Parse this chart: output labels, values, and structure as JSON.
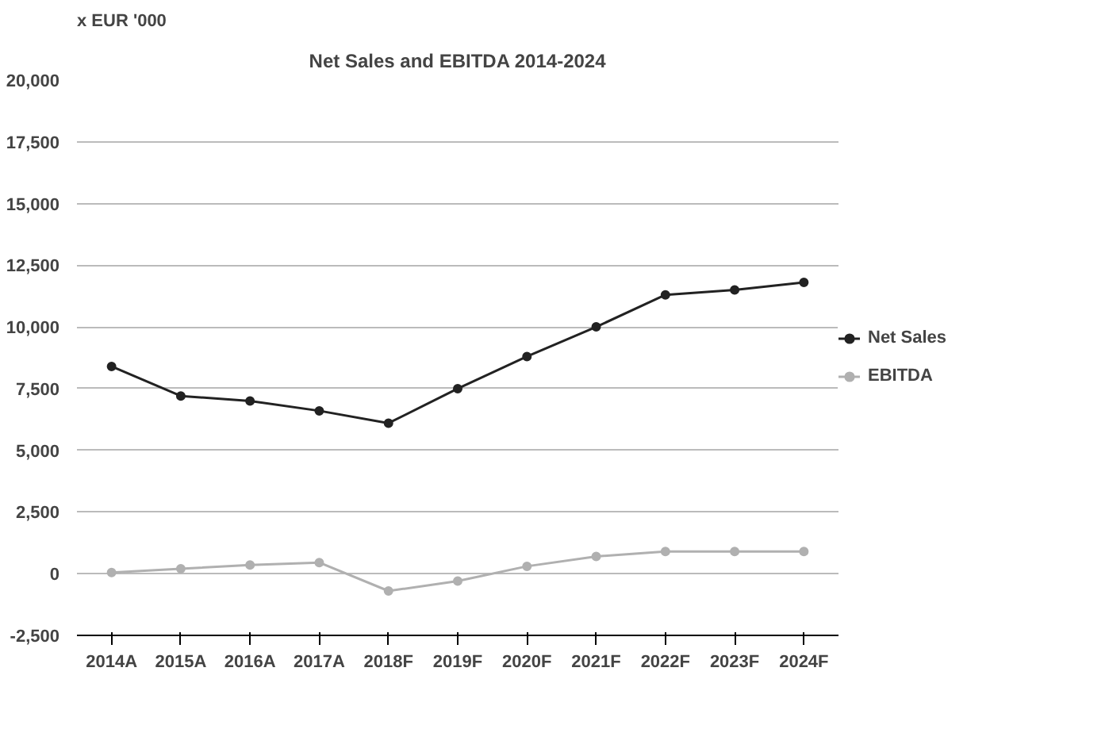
{
  "chart_data": {
    "type": "line",
    "title": "Net Sales and EBITDA 2014-2024",
    "ylabel": "x EUR '000",
    "categories": [
      "2014A",
      "2015A",
      "2016A",
      "2017A",
      "2018F",
      "2019F",
      "2020F",
      "2021F",
      "2022F",
      "2023F",
      "2024F"
    ],
    "series": [
      {
        "name": "Net Sales",
        "color": "#222222",
        "values": [
          8400,
          7200,
          7000,
          6600,
          6100,
          7500,
          8800,
          10000,
          11300,
          11500,
          11800
        ]
      },
      {
        "name": "EBITDA",
        "color": "#b0b0b0",
        "values": [
          50,
          200,
          350,
          450,
          -700,
          -300,
          300,
          700,
          900,
          900,
          900
        ]
      }
    ],
    "ylim": [
      -2500,
      20000
    ],
    "yticks": [
      {
        "value": -2500,
        "label": "-2,500"
      },
      0,
      {
        "value": 2500,
        "label": "2,500"
      },
      {
        "value": 5000,
        "label": "5,000"
      },
      {
        "value": 7500,
        "label": "7,500"
      },
      {
        "value": 10000,
        "label": "10,000"
      },
      {
        "value": 12500,
        "label": "12,500"
      },
      {
        "value": 15000,
        "label": "15,000"
      },
      {
        "value": 17500,
        "label": "17,500"
      },
      {
        "value": 20000,
        "label": "20,000"
      }
    ],
    "grid": "y",
    "legend": "right",
    "marker": "circle",
    "line_style": "solid"
  }
}
